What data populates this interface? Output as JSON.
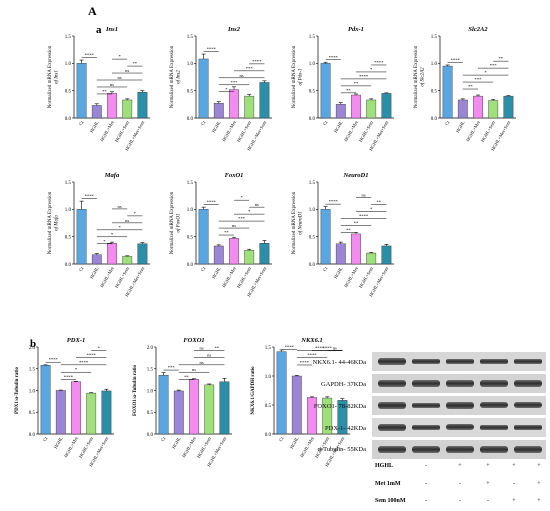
{
  "figure": {
    "panel_main": "A",
    "panel_a": "a",
    "panel_b": "b"
  },
  "colors": {
    "Ct": "#5aa6e0",
    "HGHL": "#9b86d6",
    "HGHL+Met": "#f48cf0",
    "HGHL+Sem": "#9fe07d",
    "HGHL+Met+Sem": "#2b8fa8"
  },
  "categories": [
    "Ct",
    "HGHL",
    "HGHL+Met",
    "HGHL+Sem",
    "HGHL+Met+Sem"
  ],
  "chart_data": [
    {
      "type": "bar",
      "title": "Ins1",
      "ylabel": "Normalized mRNA Expression of Ins1",
      "ylim": [
        0,
        1.5
      ],
      "yticks": [
        "0.0",
        "0.5",
        "1.0",
        "1.5"
      ],
      "values": [
        1.0,
        0.23,
        0.45,
        0.33,
        0.47
      ],
      "errors": [
        0.06,
        0.03,
        0.03,
        0.02,
        0.03
      ],
      "sig": [
        "****",
        "**",
        "ns",
        "ns",
        "ns",
        "**",
        "*"
      ]
    },
    {
      "type": "bar",
      "title": "Ins2",
      "ylabel": "Normalized mRNA Expression of Ins2",
      "ylim": [
        0,
        1.5
      ],
      "yticks": [
        "0.0",
        "0.5",
        "1.0",
        "1.5"
      ],
      "values": [
        1.08,
        0.27,
        0.52,
        0.4,
        0.65
      ],
      "errors": [
        0.09,
        0.03,
        0.05,
        0.03,
        0.03
      ],
      "sig": [
        "****",
        "*",
        "***",
        "ns",
        "***",
        "****"
      ]
    },
    {
      "type": "bar",
      "title": "Pdx-1",
      "ylabel": "Normalized mRNA Expression of Pdx-1",
      "ylim": [
        0,
        1.5
      ],
      "yticks": [
        "0.0",
        "0.5",
        "1.0",
        "1.5"
      ],
      "values": [
        1.0,
        0.25,
        0.42,
        0.33,
        0.45
      ],
      "errors": [
        0.02,
        0.03,
        0.02,
        0.02,
        0.01
      ],
      "sig": [
        "****",
        "**",
        "**",
        "****",
        "*",
        "****"
      ]
    },
    {
      "type": "bar",
      "title": "Slc2A2",
      "ylabel": "Normalized mRNA Expression of Slc2A2",
      "ylim": [
        0,
        1.5
      ],
      "yticks": [
        "0.0",
        "0.5",
        "1.0",
        "1.5"
      ],
      "values": [
        0.95,
        0.33,
        0.4,
        0.32,
        0.4
      ],
      "errors": [
        0.02,
        0.02,
        0.02,
        0.02,
        0.01
      ],
      "sig": [
        "****",
        "**",
        "***",
        "*",
        "***",
        "**"
      ]
    },
    {
      "type": "bar",
      "title": "Mafa",
      "ylabel": "Normalized mRNA Expression of Mafa",
      "ylim": [
        0,
        1.5
      ],
      "yticks": [
        "0.0",
        "0.5",
        "1.0",
        "1.5"
      ],
      "values": [
        1.0,
        0.17,
        0.38,
        0.14,
        0.37
      ],
      "errors": [
        0.15,
        0.02,
        0.02,
        0.01,
        0.02
      ],
      "sig": [
        "****",
        "*",
        "*",
        "*",
        "ns",
        "*",
        "ns"
      ]
    },
    {
      "type": "bar",
      "title": "FoxO1",
      "ylabel": "Normalized mRNA Expression of FoxO1",
      "ylim": [
        0,
        1.5
      ],
      "yticks": [
        "0.0",
        "0.5",
        "1.0",
        "1.5"
      ],
      "values": [
        1.0,
        0.33,
        0.47,
        0.25,
        0.38
      ],
      "errors": [
        0.04,
        0.02,
        0.02,
        0.02,
        0.05
      ],
      "sig": [
        "****",
        "**",
        "ns",
        "***",
        "*",
        "ns",
        "*"
      ]
    },
    {
      "type": "bar",
      "title": "NeuroD1",
      "ylabel": "Normalized mRNA Expression of NeuroD1",
      "ylim": [
        0,
        1.5
      ],
      "yticks": [
        "0.0",
        "0.5",
        "1.0",
        "1.5"
      ],
      "values": [
        1.0,
        0.37,
        0.55,
        0.2,
        0.33
      ],
      "errors": [
        0.05,
        0.03,
        0.03,
        0.01,
        0.03
      ],
      "sig": [
        "****",
        "**",
        "**",
        "****",
        "*",
        "**",
        "ns"
      ]
    },
    {
      "type": "bar",
      "title": "PDX-1",
      "ylabel": "PDX1/α-Tubulin ratio",
      "ylim": [
        0,
        2.0
      ],
      "yticks": [
        "0.0",
        "0.5",
        "1.0",
        "1.5",
        "2.0"
      ],
      "values": [
        1.58,
        1.0,
        1.2,
        0.94,
        0.99
      ],
      "errors": [
        0.01,
        0.01,
        0.01,
        0.01,
        0.04
      ],
      "sig": [
        "****",
        "****",
        "*",
        "****",
        "****",
        "*"
      ]
    },
    {
      "type": "bar",
      "title": "FOXO1",
      "ylabel": "FOXO1/α-Tubulin ratio",
      "ylim": [
        0,
        2.0
      ],
      "yticks": [
        "0.0",
        "0.5",
        "1.0",
        "1.5",
        "2.0"
      ],
      "values": [
        1.35,
        0.99,
        1.26,
        1.13,
        1.2
      ],
      "errors": [
        0.06,
        0.02,
        0.01,
        0.02,
        0.08
      ],
      "sig": [
        "***",
        "**",
        "ns",
        "ns",
        "ns",
        "**",
        "ns"
      ]
    },
    {
      "type": "bar",
      "title": "NKX6.1",
      "ylabel": "NKX6.1/GAPDH ratio",
      "ylim": [
        0,
        1.5
      ],
      "yticks": [
        "0.0",
        "0.5",
        "1.0",
        "1.5"
      ],
      "values": [
        1.42,
        1.0,
        0.63,
        0.62,
        0.58
      ],
      "errors": [
        0.03,
        0.01,
        0.01,
        0.02,
        0.03
      ],
      "sig": [
        "****",
        "****",
        "****",
        "****",
        "****",
        "ns"
      ]
    }
  ],
  "western_blot": {
    "labels": [
      "NKX6.1- 44-46KDa",
      "GAPDH- 37KDa",
      "FOXO1- 78-82KDa",
      "PDX-1- 42KDa",
      "α-Tubulin- 55KDa"
    ],
    "conditions": [
      {
        "label": "HGHL",
        "values": [
          "-",
          "+",
          "+",
          "+",
          "+"
        ]
      },
      {
        "label": "Met 1mM",
        "values": [
          "-",
          "-",
          "+",
          "-",
          "+"
        ]
      },
      {
        "label": "Sem 100nM",
        "values": [
          "-",
          "-",
          "-",
          "+",
          "+"
        ]
      }
    ]
  }
}
